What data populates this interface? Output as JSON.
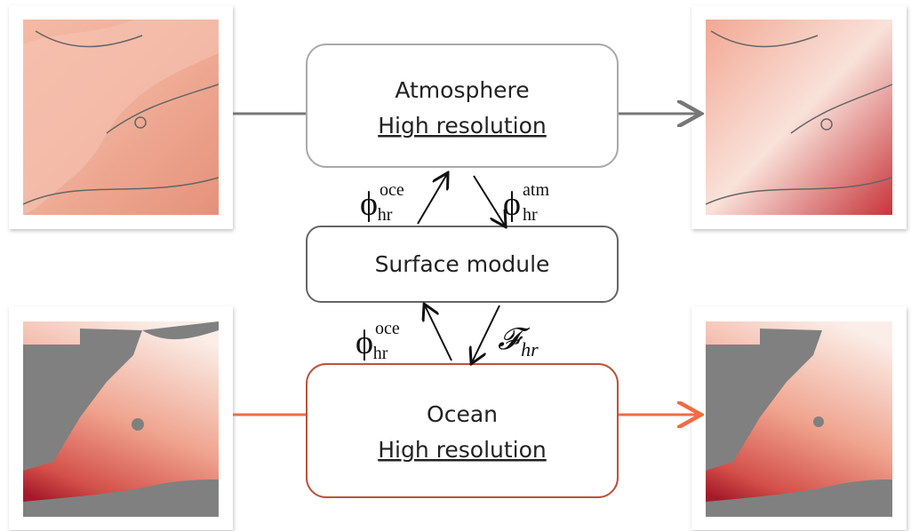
{
  "boxes": [
    {
      "title": "Atmosphere",
      "subtitle": "High resolution"
    },
    {
      "title": "Surface module"
    },
    {
      "title": "Ocean",
      "subtitle": "High resolution"
    }
  ],
  "labels": [
    {
      "base": "ϕ",
      "sub": "hr",
      "sup": "oce"
    },
    {
      "base": "ϕ",
      "sub": "hr",
      "sup": "atm"
    },
    {
      "base": "ϕ",
      "sub": "hr",
      "sup": "oce"
    },
    {
      "base": "𝓕",
      "sub": "hr"
    }
  ]
}
